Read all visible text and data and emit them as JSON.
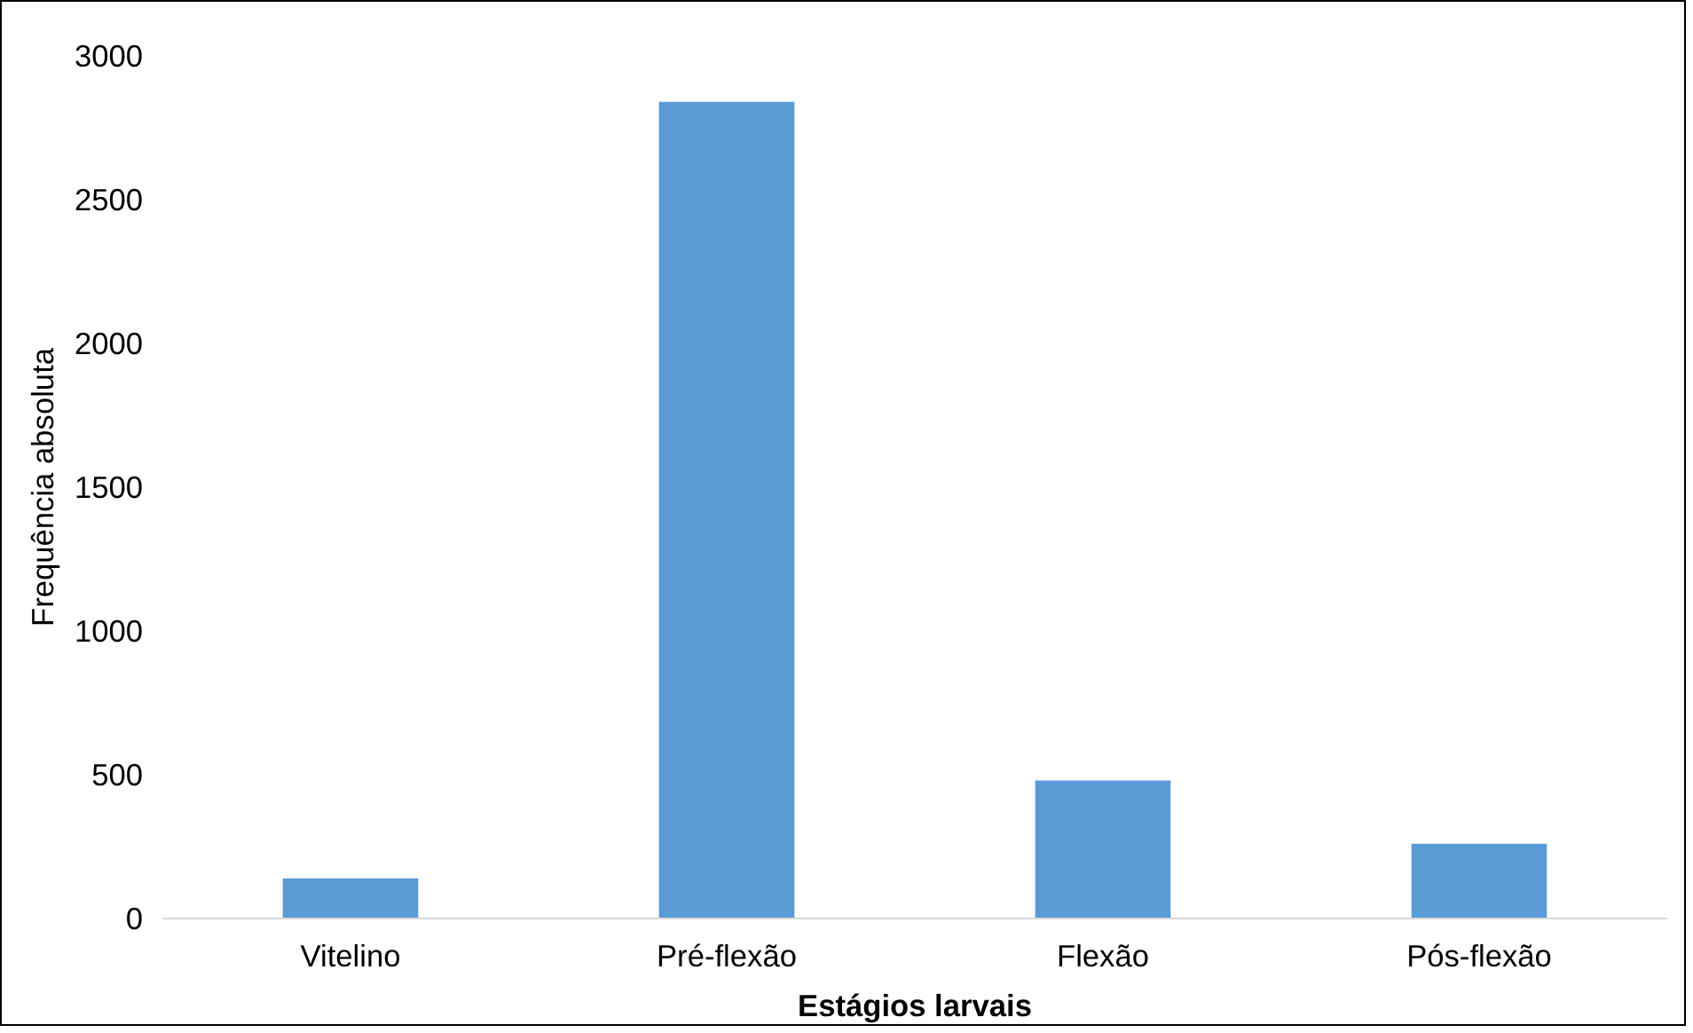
{
  "chart_data": {
    "type": "bar",
    "xlabel": "Estágios larvais",
    "ylabel": "Frequência absoluta",
    "categories": [
      "Vitelino",
      "Pré-flexão",
      "Flexão",
      "Pós-flexão"
    ],
    "values": [
      140,
      2840,
      480,
      260
    ],
    "color": "#5b9bd5",
    "ylim": [
      0,
      3000
    ],
    "yticks": [
      0,
      500,
      1000,
      1500,
      2000,
      2500,
      3000
    ],
    "grid": false
  }
}
